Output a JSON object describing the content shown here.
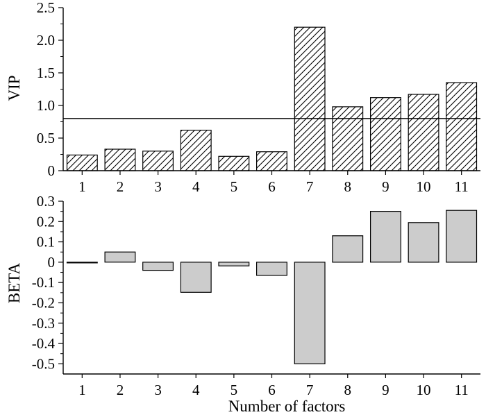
{
  "chart_data": [
    {
      "type": "bar",
      "ylabel": "VIP",
      "xlabel": "",
      "categories": [
        "1",
        "2",
        "3",
        "4",
        "5",
        "6",
        "7",
        "8",
        "9",
        "10",
        "11"
      ],
      "values": [
        0.24,
        0.33,
        0.3,
        0.62,
        0.22,
        0.29,
        2.2,
        0.98,
        1.12,
        1.17,
        1.35
      ],
      "ylim": [
        0,
        2.5
      ],
      "yticks": [
        "0",
        "0.5",
        "1.0",
        "1.5",
        "2.0",
        "2.5"
      ],
      "reference_line": 0.8,
      "bar_fill": "hatched",
      "bar_color": "#ffffff",
      "grid": false
    },
    {
      "type": "bar",
      "ylabel": "BETA",
      "xlabel": "Number of factors",
      "categories": [
        "1",
        "2",
        "3",
        "4",
        "5",
        "6",
        "7",
        "8",
        "9",
        "10",
        "11"
      ],
      "values": [
        -0.002,
        0.05,
        -0.04,
        -0.148,
        -0.018,
        -0.065,
        -0.5,
        0.13,
        0.25,
        0.195,
        0.255
      ],
      "ylim": [
        -0.55,
        0.3
      ],
      "yticks": [
        "0.3",
        "0.2",
        "0.1",
        "0",
        "-0.1",
        "-0.2",
        "-0.3",
        "-0.4",
        "-0.5"
      ],
      "bar_fill": "solid",
      "bar_color": "#cccccc",
      "grid": false
    }
  ]
}
